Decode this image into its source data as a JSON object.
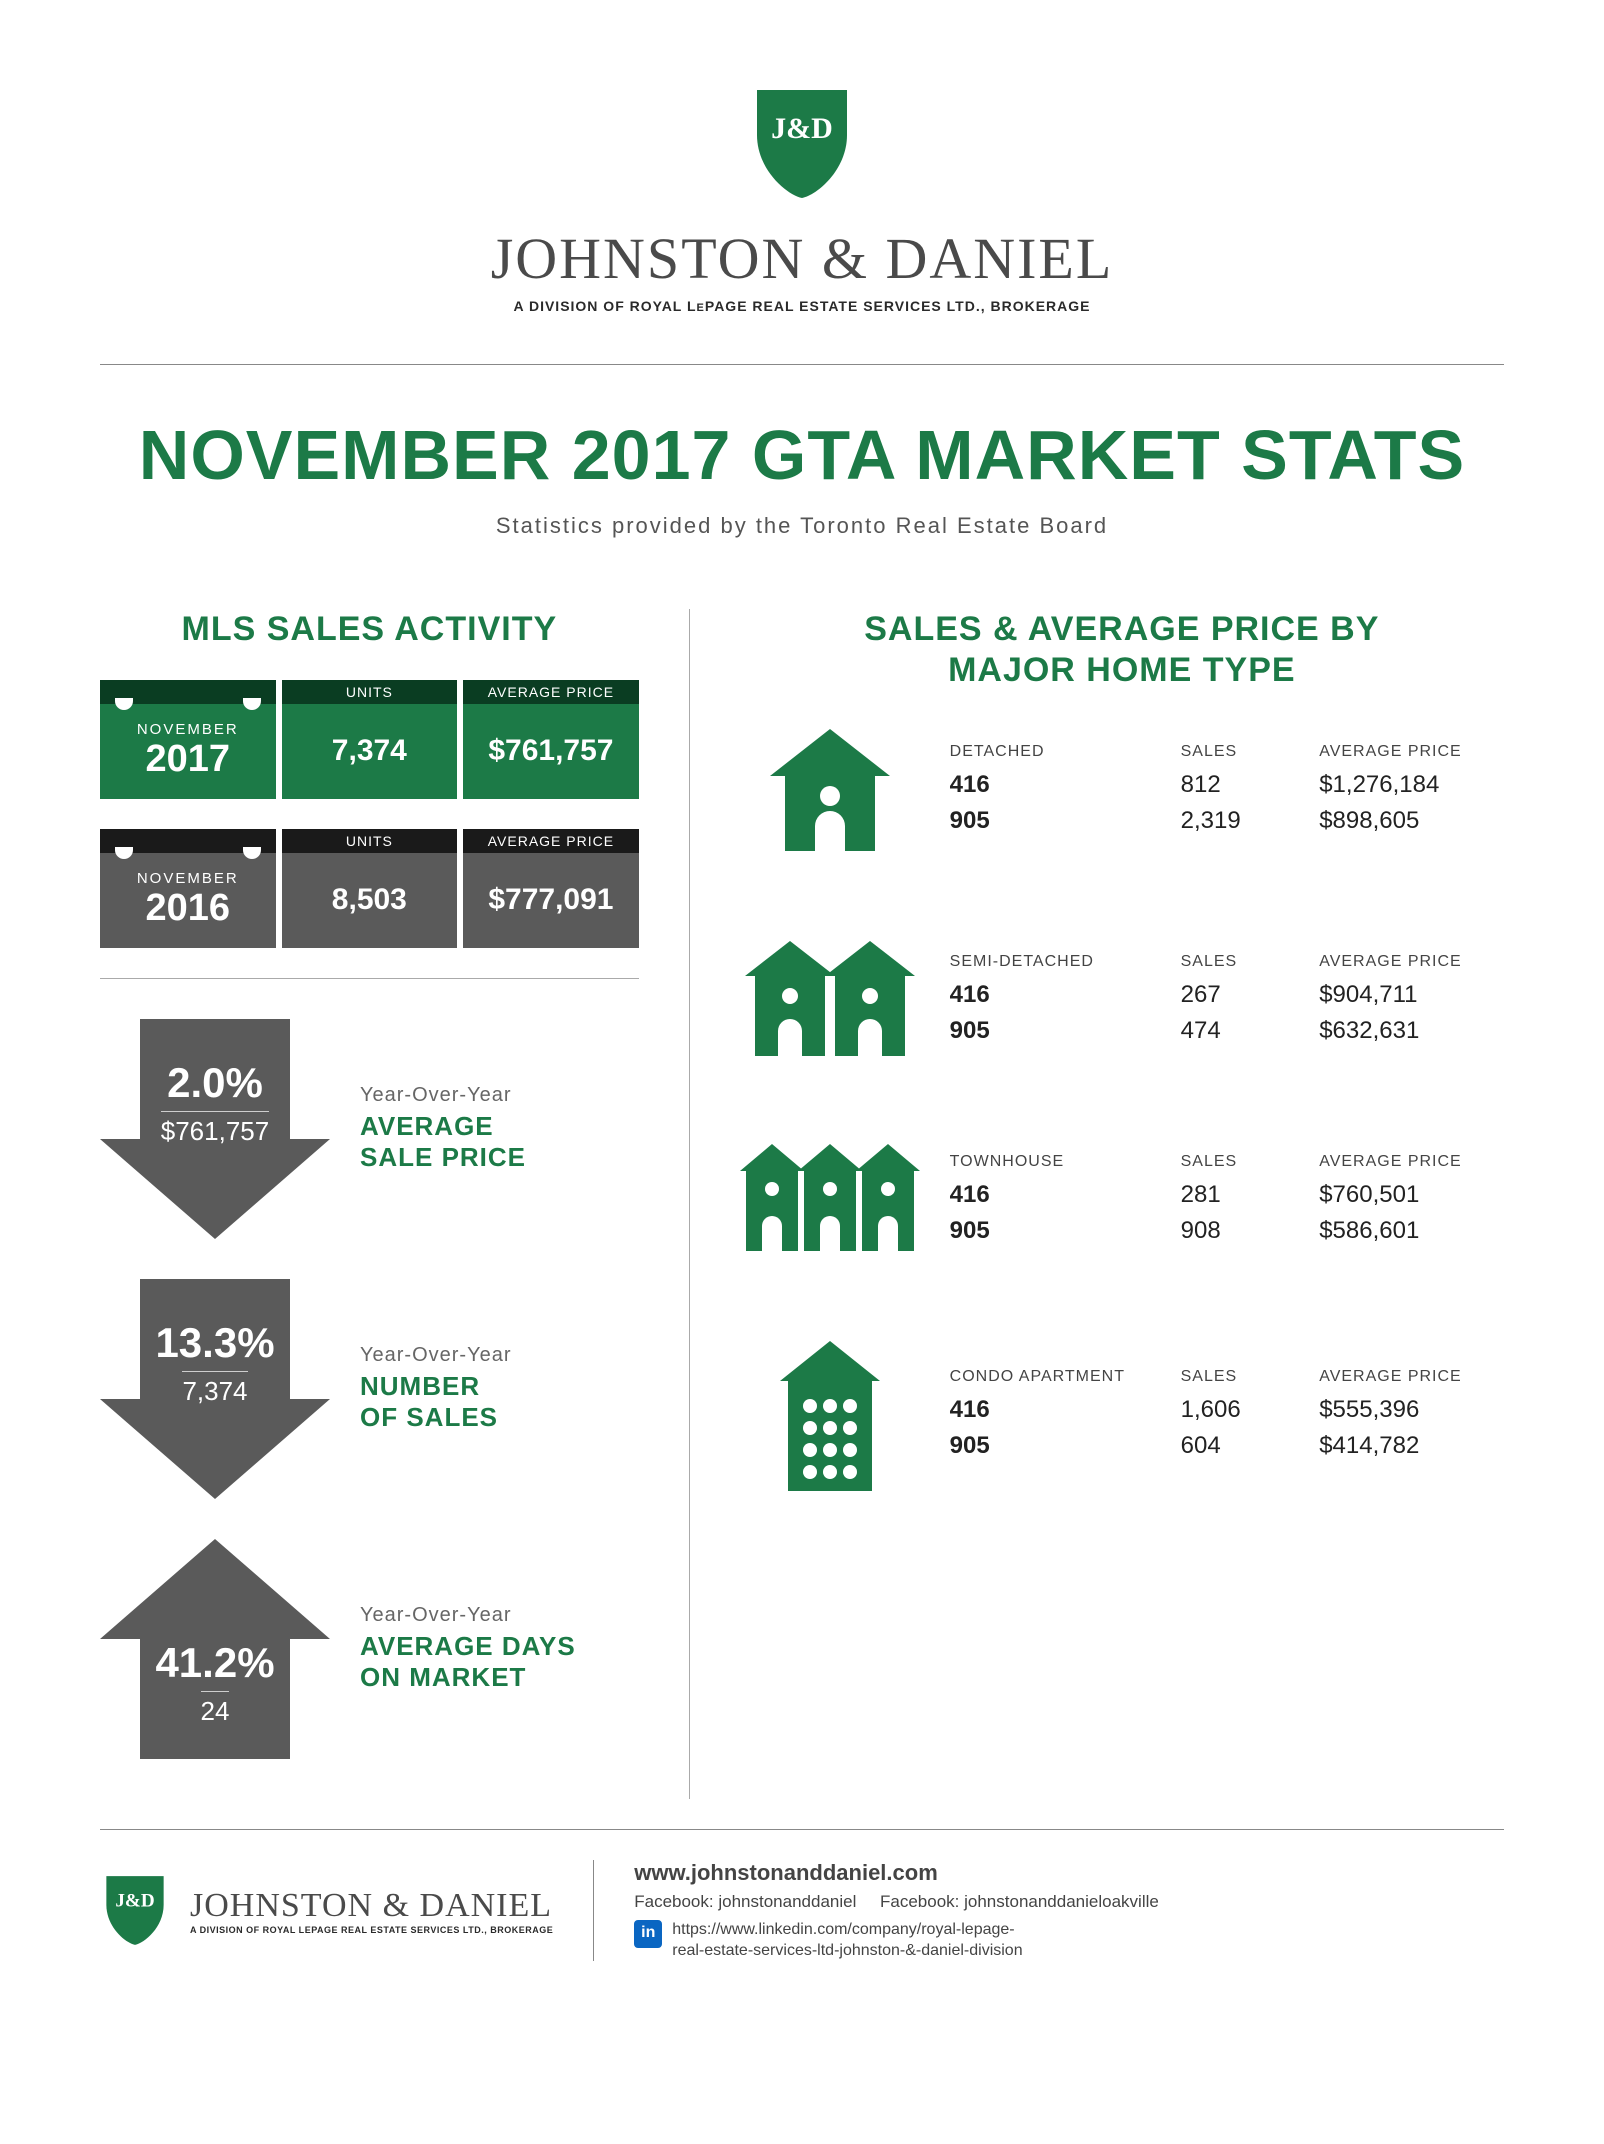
{
  "colors": {
    "brand_green": "#1c7a47",
    "dark_green": "#0a3d22",
    "grey": "#5a5a5a",
    "dark_grey": "#1a1a1a",
    "text_grey": "#666666"
  },
  "header": {
    "shield_text": "J&D",
    "brand": "JOHNSTON & DANIEL",
    "brand_sub_pre": "A DIVISION OF ROYAL L",
    "brand_sub_e": "E",
    "brand_sub_post": "PAGE REAL ESTATE SERVICES LTD., BROKERAGE"
  },
  "page_title": "NOVEMBER 2017 GTA MARKET STATS",
  "page_subtitle": "Statistics provided by the Toronto Real Estate Board",
  "mls": {
    "heading": "MLS SALES ACTIVITY",
    "col_units": "UNITS",
    "col_price": "AVERAGE PRICE",
    "rows": [
      {
        "theme": "green",
        "month": "NOVEMBER",
        "year": "2017",
        "units": "7,374",
        "price": "$761,757"
      },
      {
        "theme": "grey",
        "month": "NOVEMBER",
        "year": "2016",
        "units": "8,503",
        "price": "$777,091"
      }
    ]
  },
  "yoy": {
    "label": "Year-Over-Year",
    "items": [
      {
        "dir": "down",
        "pct": "2.0%",
        "val": "$761,757",
        "text": "AVERAGE\nSALE PRICE"
      },
      {
        "dir": "down",
        "pct": "13.3%",
        "val": "7,374",
        "text": "NUMBER\nOF SALES"
      },
      {
        "dir": "up",
        "pct": "41.2%",
        "val": "24",
        "text": "AVERAGE DAYS\nON MARKET"
      }
    ]
  },
  "homes": {
    "heading": "SALES & AVERAGE PRICE BY\nMAJOR HOME TYPE",
    "col_sales": "SALES",
    "col_price": "AVERAGE PRICE",
    "types": [
      {
        "name": "DETACHED",
        "icon": "detached-icon",
        "rows": [
          {
            "area": "416",
            "sales": "812",
            "price": "$1,276,184"
          },
          {
            "area": "905",
            "sales": "2,319",
            "price": "$898,605"
          }
        ]
      },
      {
        "name": "SEMI-DETACHED",
        "icon": "semi-detached-icon",
        "rows": [
          {
            "area": "416",
            "sales": "267",
            "price": "$904,711"
          },
          {
            "area": "905",
            "sales": "474",
            "price": "$632,631"
          }
        ]
      },
      {
        "name": "TOWNHOUSE",
        "icon": "townhouse-icon",
        "rows": [
          {
            "area": "416",
            "sales": "281",
            "price": "$760,501"
          },
          {
            "area": "905",
            "sales": "908",
            "price": "$586,601"
          }
        ]
      },
      {
        "name": "CONDO APARTMENT",
        "icon": "condo-icon",
        "rows": [
          {
            "area": "416",
            "sales": "1,606",
            "price": "$555,396"
          },
          {
            "area": "905",
            "sales": "604",
            "price": "$414,782"
          }
        ]
      }
    ]
  },
  "footer": {
    "website": "www.johnstonanddaniel.com",
    "fb1_label": "Facebook:",
    "fb1": "johnstonanddaniel",
    "fb2_label": "Facebook:",
    "fb2": "johnstonanddanieloakville",
    "linkedin": "https://www.linkedin.com/company/royal-lepage-\nreal-estate-services-ltd-johnston-&-daniel-division"
  }
}
